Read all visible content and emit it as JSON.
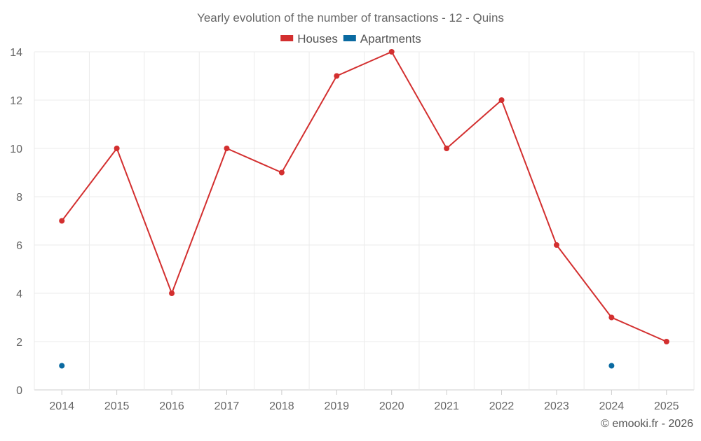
{
  "chart_data": {
    "type": "line",
    "title": "Yearly evolution of the number of transactions - 12 - Quins",
    "xlabel": "",
    "ylabel": "",
    "categories": [
      "2014",
      "2015",
      "2016",
      "2017",
      "2018",
      "2019",
      "2020",
      "2021",
      "2022",
      "2023",
      "2024",
      "2025"
    ],
    "ylim": [
      0,
      14
    ],
    "yticks": [
      0,
      2,
      4,
      6,
      8,
      10,
      12,
      14
    ],
    "grid": true,
    "legend_position": "top-center",
    "series": [
      {
        "name": "Houses",
        "color": "#d32f2f",
        "values": [
          7,
          10,
          4,
          10,
          9,
          13,
          14,
          10,
          12,
          6,
          3,
          2
        ]
      },
      {
        "name": "Apartments",
        "color": "#0a6aa1",
        "values": [
          1,
          null,
          null,
          null,
          null,
          null,
          null,
          null,
          null,
          null,
          1,
          null
        ]
      }
    ],
    "credit": "© emooki.fr - 2026"
  }
}
